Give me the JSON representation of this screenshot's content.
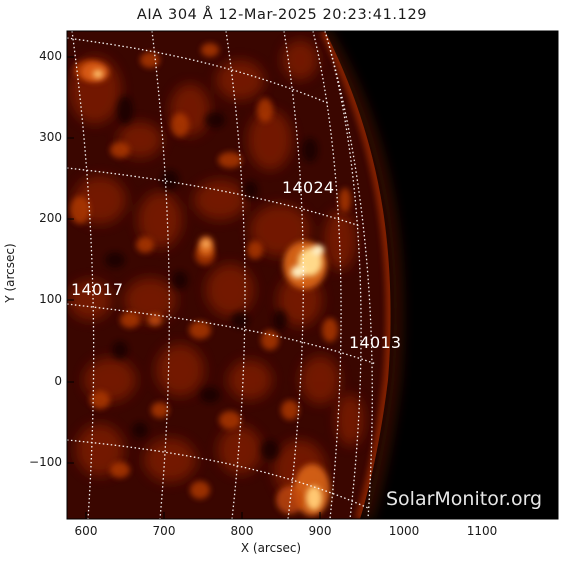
{
  "title": "AIA 304 Å 12-Mar-2025  20:23:41.129",
  "axes": {
    "x_label": "X (arcsec)",
    "y_label": "Y (arcsec)",
    "x_ticks": [
      "600",
      "700",
      "800",
      "900",
      "1000",
      "1100"
    ],
    "y_ticks": [
      "400",
      "300",
      "200",
      "100",
      "0",
      "−100"
    ],
    "x_range": [
      580,
      1180
    ],
    "y_range": [
      -165,
      432
    ]
  },
  "active_regions": [
    {
      "id": "14024",
      "label": "14024"
    },
    {
      "id": "14017",
      "label": "14017"
    },
    {
      "id": "14013",
      "label": "14013"
    }
  ],
  "watermark": "SolarMonitor.org",
  "colors": {
    "background": "#000000",
    "disk_dark": "#3a0600",
    "disk_mid": "#8e1e00",
    "plage": "#d2550c",
    "bright": "#ffe08a",
    "grid": "#ffffff"
  }
}
